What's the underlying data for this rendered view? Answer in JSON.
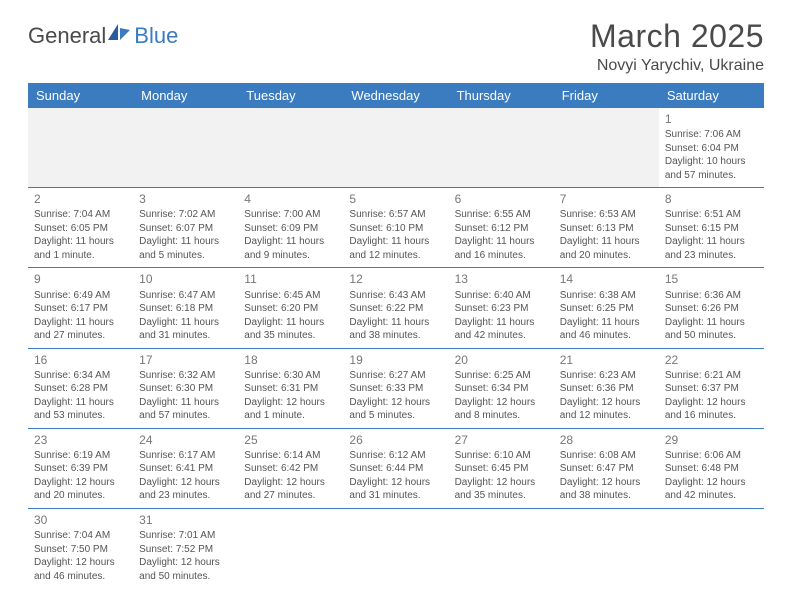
{
  "logo": {
    "text1": "General",
    "text2": "Blue"
  },
  "title": "March 2025",
  "location": "Novyi Yarychiv, Ukraine",
  "day_headers": [
    "Sunday",
    "Monday",
    "Tuesday",
    "Wednesday",
    "Thursday",
    "Friday",
    "Saturday"
  ],
  "colors": {
    "header_bg": "#3b7bbf",
    "border": "#3b7bbf",
    "text": "#555",
    "title": "#4a4a4a"
  },
  "fonts": {
    "title_size": 32,
    "location_size": 16,
    "header_size": 13,
    "cell_size": 10,
    "daynum_size": 12
  },
  "weeks": [
    [
      {
        "empty": true
      },
      {
        "empty": true
      },
      {
        "empty": true
      },
      {
        "empty": true
      },
      {
        "empty": true
      },
      {
        "empty": true
      },
      {
        "day": "1",
        "sunrise": "Sunrise: 7:06 AM",
        "sunset": "Sunset: 6:04 PM",
        "daylight": "Daylight: 10 hours and 57 minutes."
      }
    ],
    [
      {
        "day": "2",
        "sunrise": "Sunrise: 7:04 AM",
        "sunset": "Sunset: 6:05 PM",
        "daylight": "Daylight: 11 hours and 1 minute."
      },
      {
        "day": "3",
        "sunrise": "Sunrise: 7:02 AM",
        "sunset": "Sunset: 6:07 PM",
        "daylight": "Daylight: 11 hours and 5 minutes."
      },
      {
        "day": "4",
        "sunrise": "Sunrise: 7:00 AM",
        "sunset": "Sunset: 6:09 PM",
        "daylight": "Daylight: 11 hours and 9 minutes."
      },
      {
        "day": "5",
        "sunrise": "Sunrise: 6:57 AM",
        "sunset": "Sunset: 6:10 PM",
        "daylight": "Daylight: 11 hours and 12 minutes."
      },
      {
        "day": "6",
        "sunrise": "Sunrise: 6:55 AM",
        "sunset": "Sunset: 6:12 PM",
        "daylight": "Daylight: 11 hours and 16 minutes."
      },
      {
        "day": "7",
        "sunrise": "Sunrise: 6:53 AM",
        "sunset": "Sunset: 6:13 PM",
        "daylight": "Daylight: 11 hours and 20 minutes."
      },
      {
        "day": "8",
        "sunrise": "Sunrise: 6:51 AM",
        "sunset": "Sunset: 6:15 PM",
        "daylight": "Daylight: 11 hours and 23 minutes."
      }
    ],
    [
      {
        "day": "9",
        "sunrise": "Sunrise: 6:49 AM",
        "sunset": "Sunset: 6:17 PM",
        "daylight": "Daylight: 11 hours and 27 minutes."
      },
      {
        "day": "10",
        "sunrise": "Sunrise: 6:47 AM",
        "sunset": "Sunset: 6:18 PM",
        "daylight": "Daylight: 11 hours and 31 minutes."
      },
      {
        "day": "11",
        "sunrise": "Sunrise: 6:45 AM",
        "sunset": "Sunset: 6:20 PM",
        "daylight": "Daylight: 11 hours and 35 minutes."
      },
      {
        "day": "12",
        "sunrise": "Sunrise: 6:43 AM",
        "sunset": "Sunset: 6:22 PM",
        "daylight": "Daylight: 11 hours and 38 minutes."
      },
      {
        "day": "13",
        "sunrise": "Sunrise: 6:40 AM",
        "sunset": "Sunset: 6:23 PM",
        "daylight": "Daylight: 11 hours and 42 minutes."
      },
      {
        "day": "14",
        "sunrise": "Sunrise: 6:38 AM",
        "sunset": "Sunset: 6:25 PM",
        "daylight": "Daylight: 11 hours and 46 minutes."
      },
      {
        "day": "15",
        "sunrise": "Sunrise: 6:36 AM",
        "sunset": "Sunset: 6:26 PM",
        "daylight": "Daylight: 11 hours and 50 minutes."
      }
    ],
    [
      {
        "day": "16",
        "sunrise": "Sunrise: 6:34 AM",
        "sunset": "Sunset: 6:28 PM",
        "daylight": "Daylight: 11 hours and 53 minutes."
      },
      {
        "day": "17",
        "sunrise": "Sunrise: 6:32 AM",
        "sunset": "Sunset: 6:30 PM",
        "daylight": "Daylight: 11 hours and 57 minutes."
      },
      {
        "day": "18",
        "sunrise": "Sunrise: 6:30 AM",
        "sunset": "Sunset: 6:31 PM",
        "daylight": "Daylight: 12 hours and 1 minute."
      },
      {
        "day": "19",
        "sunrise": "Sunrise: 6:27 AM",
        "sunset": "Sunset: 6:33 PM",
        "daylight": "Daylight: 12 hours and 5 minutes."
      },
      {
        "day": "20",
        "sunrise": "Sunrise: 6:25 AM",
        "sunset": "Sunset: 6:34 PM",
        "daylight": "Daylight: 12 hours and 8 minutes."
      },
      {
        "day": "21",
        "sunrise": "Sunrise: 6:23 AM",
        "sunset": "Sunset: 6:36 PM",
        "daylight": "Daylight: 12 hours and 12 minutes."
      },
      {
        "day": "22",
        "sunrise": "Sunrise: 6:21 AM",
        "sunset": "Sunset: 6:37 PM",
        "daylight": "Daylight: 12 hours and 16 minutes."
      }
    ],
    [
      {
        "day": "23",
        "sunrise": "Sunrise: 6:19 AM",
        "sunset": "Sunset: 6:39 PM",
        "daylight": "Daylight: 12 hours and 20 minutes."
      },
      {
        "day": "24",
        "sunrise": "Sunrise: 6:17 AM",
        "sunset": "Sunset: 6:41 PM",
        "daylight": "Daylight: 12 hours and 23 minutes."
      },
      {
        "day": "25",
        "sunrise": "Sunrise: 6:14 AM",
        "sunset": "Sunset: 6:42 PM",
        "daylight": "Daylight: 12 hours and 27 minutes."
      },
      {
        "day": "26",
        "sunrise": "Sunrise: 6:12 AM",
        "sunset": "Sunset: 6:44 PM",
        "daylight": "Daylight: 12 hours and 31 minutes."
      },
      {
        "day": "27",
        "sunrise": "Sunrise: 6:10 AM",
        "sunset": "Sunset: 6:45 PM",
        "daylight": "Daylight: 12 hours and 35 minutes."
      },
      {
        "day": "28",
        "sunrise": "Sunrise: 6:08 AM",
        "sunset": "Sunset: 6:47 PM",
        "daylight": "Daylight: 12 hours and 38 minutes."
      },
      {
        "day": "29",
        "sunrise": "Sunrise: 6:06 AM",
        "sunset": "Sunset: 6:48 PM",
        "daylight": "Daylight: 12 hours and 42 minutes."
      }
    ],
    [
      {
        "day": "30",
        "sunrise": "Sunrise: 7:04 AM",
        "sunset": "Sunset: 7:50 PM",
        "daylight": "Daylight: 12 hours and 46 minutes."
      },
      {
        "day": "31",
        "sunrise": "Sunrise: 7:01 AM",
        "sunset": "Sunset: 7:52 PM",
        "daylight": "Daylight: 12 hours and 50 minutes."
      },
      {
        "empty": true
      },
      {
        "empty": true
      },
      {
        "empty": true
      },
      {
        "empty": true
      },
      {
        "empty": true
      }
    ]
  ]
}
